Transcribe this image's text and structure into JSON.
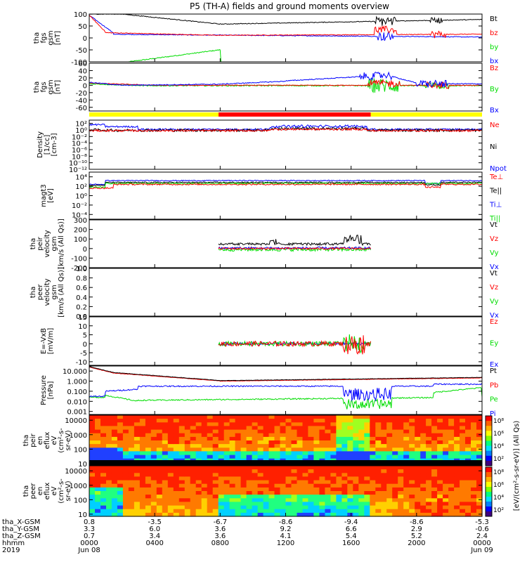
{
  "title": "P5 (TH-A) fields and ground moments overview",
  "colors": {
    "black": "#000000",
    "red": "#ff0000",
    "green": "#00dd00",
    "blue": "#0000ff",
    "yellow": "#ffff00"
  },
  "chart_data": [
    {
      "type": "line",
      "ylabel": [
        "tha",
        "fgs",
        "gsm",
        "[nT]"
      ],
      "ylim": [
        -100,
        100
      ],
      "ticks": [
        "100",
        "50",
        "0",
        "-50",
        "-100"
      ],
      "tick_values": [
        100,
        50,
        0,
        -50,
        -100
      ],
      "legend": [
        {
          "name": "Bt",
          "color": "#000000"
        },
        {
          "name": "bz",
          "color": "#ff0000"
        },
        {
          "name": "by",
          "color": "#00dd00"
        },
        {
          "name": "bx",
          "color": "#0000ff"
        }
      ]
    },
    {
      "type": "line",
      "ylabel": [
        "tha",
        "fgs",
        "gsm",
        "[nT]"
      ],
      "ylim": [
        -70,
        60
      ],
      "ticks": [
        "60",
        "40",
        "20",
        "0",
        "-20",
        "-40",
        "-60"
      ],
      "tick_values": [
        60,
        40,
        20,
        0,
        -20,
        -40,
        -60
      ],
      "legend": [
        {
          "name": "Bz",
          "color": "#ff0000"
        },
        {
          "name": "By",
          "color": "#00dd00"
        },
        {
          "name": "Bx",
          "color": "#0000ff"
        }
      ]
    },
    {
      "type": "line",
      "ylabel": [
        "Density",
        "[1/cc]",
        "[cm-3]"
      ],
      "log": true,
      "ylim": [
        -12,
        3
      ],
      "ticks": [
        "10²",
        "10⁰",
        "10⁻²",
        "10⁻⁴",
        "10⁻⁶",
        "10⁻⁸",
        "10⁻¹⁰",
        "10⁻¹²"
      ],
      "tick_values": [
        2,
        0,
        -2,
        -4,
        -6,
        -8,
        -10,
        -12
      ],
      "legend": [
        {
          "name": "Ne",
          "color": "#ff0000"
        },
        {
          "name": "Ni",
          "color": "#000000"
        },
        {
          "name": "Npot",
          "color": "#0000ff"
        }
      ]
    },
    {
      "type": "line",
      "ylabel": [
        "magt3",
        "[eV]"
      ],
      "log": true,
      "ylim": [
        -5,
        5
      ],
      "ticks": [
        "10⁴",
        "10²",
        "10⁰",
        "10⁻²",
        "10⁻⁴"
      ],
      "tick_values": [
        4,
        2,
        0,
        -2,
        -4
      ],
      "legend": [
        {
          "name": "Te⊥",
          "color": "#ff0000"
        },
        {
          "name": "Te||",
          "color": "#000000"
        },
        {
          "name": "Ti⊥",
          "color": "#0000ff"
        },
        {
          "name": "Ti||",
          "color": "#00dd00"
        }
      ]
    },
    {
      "type": "line",
      "ylabel": [
        "tha",
        "peir",
        "velocity",
        "gsm",
        "[km/s (All Qs)]"
      ],
      "ylim": [
        -200,
        300
      ],
      "ticks": [
        "300",
        "200",
        "100",
        "0",
        "-100",
        "-200"
      ],
      "tick_values": [
        300,
        200,
        100,
        0,
        -100,
        -200
      ],
      "legend": [
        {
          "name": "Vt",
          "color": "#000000"
        },
        {
          "name": "Vz",
          "color": "#ff0000"
        },
        {
          "name": "Vy",
          "color": "#00dd00"
        },
        {
          "name": "Vx",
          "color": "#0000ff"
        }
      ]
    },
    {
      "type": "line",
      "ylabel": [
        "tha",
        "peer",
        "velocity",
        "gsm",
        "[km/s (All Qs)]"
      ],
      "ylim": [
        0,
        1
      ],
      "ticks": [
        "1.0",
        "0.8",
        "0.6",
        "0.4",
        "0.2",
        "0.0"
      ],
      "tick_values": [
        1,
        0.8,
        0.6,
        0.4,
        0.2,
        0
      ],
      "legend": [
        {
          "name": "Vt",
          "color": "#000000"
        },
        {
          "name": "Vz",
          "color": "#ff0000"
        },
        {
          "name": "Vy",
          "color": "#00dd00"
        },
        {
          "name": "Vx",
          "color": "#0000ff"
        }
      ]
    },
    {
      "type": "line",
      "ylabel": [
        "E=-VxB",
        "[mV/m]"
      ],
      "ylim": [
        -12,
        15
      ],
      "ticks": [
        "15",
        "10",
        "5",
        "0",
        "-5",
        "-10"
      ],
      "tick_values": [
        15,
        10,
        5,
        0,
        -5,
        -10
      ],
      "legend": [
        {
          "name": "Ez",
          "color": "#ff0000"
        },
        {
          "name": "Ey",
          "color": "#00dd00"
        },
        {
          "name": "Ex",
          "color": "#0000ff"
        }
      ]
    },
    {
      "type": "line",
      "ylabel": [
        "Pressure",
        "[nPa]"
      ],
      "log": true,
      "ylim": [
        -3.3,
        1.5
      ],
      "ticks": [
        "10.000",
        "1.000",
        "0.100",
        "0.010",
        "0.001"
      ],
      "tick_values": [
        1,
        0,
        -1,
        -2,
        -3
      ],
      "legend": [
        {
          "name": "Pt",
          "color": "#000000"
        },
        {
          "name": "Pb",
          "color": "#ff0000"
        },
        {
          "name": "Pe",
          "color": "#00dd00"
        },
        {
          "name": "Pi",
          "color": "#0000ff"
        }
      ]
    },
    {
      "type": "heatmap",
      "ylabel": [
        "tha",
        "peir",
        "en",
        "eflux",
        "eV",
        "(cm²-s-",
        "sr-eV)"
      ],
      "log": true,
      "ylim": [
        0.85,
        4.35
      ],
      "ticks": [
        "10000",
        "1000",
        "100",
        "10"
      ],
      "tick_values": [
        4,
        3,
        2,
        1
      ]
    },
    {
      "type": "heatmap",
      "ylabel": [
        "tha",
        "peer",
        "en",
        "eflux",
        "eV",
        "(cm²-s-",
        "sr-eV)"
      ],
      "log": true,
      "ylim": [
        0.85,
        4.35
      ],
      "ticks": [
        "10000",
        "1000",
        "100",
        "10"
      ],
      "tick_values": [
        4,
        3,
        2,
        1
      ]
    }
  ],
  "colorbar": {
    "label": "[eV/(cm²-s-sr-eV)] (All Qs)",
    "ticks_top": [
      "10⁸",
      "10⁶",
      "10⁴",
      "10²"
    ],
    "ticks_bottom": [
      "10⁸",
      "10⁶",
      "10⁴",
      "10²"
    ]
  },
  "xaxis": {
    "rows": [
      {
        "label": "tha_X-GSM",
        "values": [
          "0.8",
          "-3.5",
          "-6.7",
          "-8.6",
          "-9.4",
          "-8.6",
          "-5.3"
        ]
      },
      {
        "label": "tha_Y-GSM",
        "values": [
          "3.3",
          "6.0",
          "3.6",
          "9.2",
          "6.6",
          "2.9",
          "-0.6"
        ]
      },
      {
        "label": "tha_Z-GSM",
        "values": [
          "0.7",
          "3.4",
          "3.6",
          "4.1",
          "5.4",
          "5.2",
          "2.4"
        ]
      },
      {
        "label": "hhmm",
        "values": [
          "0000",
          "0400",
          "0800",
          "1200",
          "1600",
          "2000",
          "0000"
        ]
      },
      {
        "label": "2019",
        "values": [
          "Jun 08",
          "",
          "",
          "",
          "",
          "",
          "Jun 09"
        ]
      }
    ],
    "hours": [
      0,
      4,
      8,
      12,
      16,
      20,
      24
    ]
  },
  "mode_bar": [
    {
      "start": 0,
      "end": 7.9,
      "color": "#ffff00"
    },
    {
      "start": 7.9,
      "end": 17.2,
      "color": "#ff0000"
    },
    {
      "start": 17.2,
      "end": 24,
      "color": "#ffff00"
    }
  ]
}
